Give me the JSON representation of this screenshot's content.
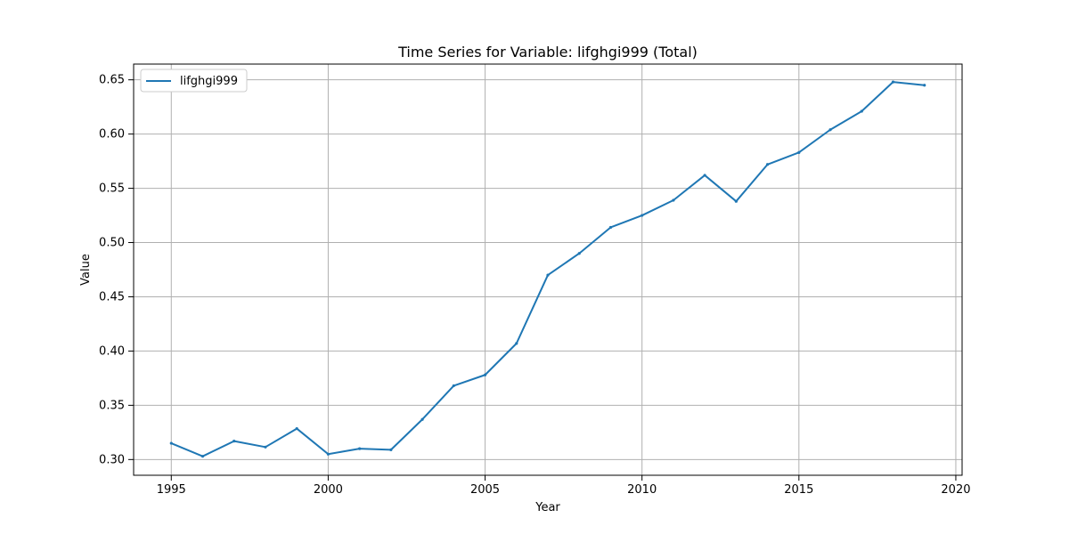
{
  "chart_data": {
    "type": "line",
    "title": "Time Series for Variable: lifghgi999 (Total)",
    "xlabel": "Year",
    "ylabel": "Value",
    "xlim": [
      1993.8,
      2020.2
    ],
    "ylim": [
      0.2855,
      0.6645
    ],
    "grid": true,
    "legend_position": "upper-left",
    "x_ticks": [
      1995,
      2000,
      2005,
      2010,
      2015,
      2020
    ],
    "y_ticks": [
      0.3,
      0.35,
      0.4,
      0.45,
      0.5,
      0.55,
      0.6,
      0.65
    ],
    "y_tick_labels": [
      "0.30",
      "0.35",
      "0.40",
      "0.45",
      "0.50",
      "0.55",
      "0.60",
      "0.65"
    ],
    "series": [
      {
        "name": "lifghgi999",
        "color": "#1f77b4",
        "x": [
          1995,
          1996,
          1997,
          1998,
          1999,
          2000,
          2001,
          2002,
          2003,
          2004,
          2005,
          2006,
          2007,
          2008,
          2009,
          2010,
          2011,
          2012,
          2013,
          2014,
          2015,
          2016,
          2017,
          2018,
          2019
        ],
        "y": [
          0.315,
          0.303,
          0.317,
          0.3115,
          0.3285,
          0.305,
          0.31,
          0.309,
          0.337,
          0.368,
          0.378,
          0.407,
          0.47,
          0.49,
          0.514,
          0.525,
          0.539,
          0.562,
          0.538,
          0.572,
          0.583,
          0.604,
          0.621,
          0.648,
          0.645
        ]
      }
    ]
  }
}
